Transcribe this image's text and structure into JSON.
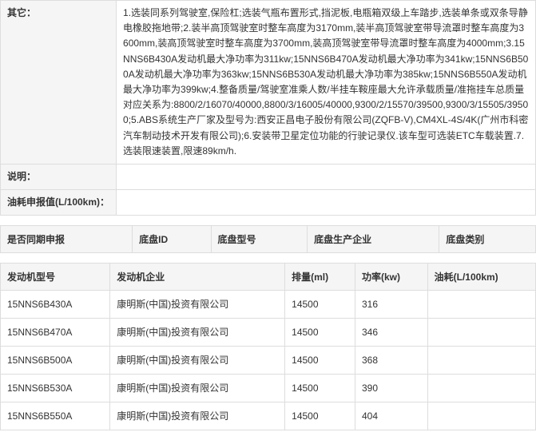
{
  "spec": {
    "other_label": "其它：",
    "other_value": "1.选装同系列驾驶室,保险杠;选装气瓶布置形式,挡泥板,电瓶箱双级上车踏步,选装单条或双条导静电橡胶拖地带;2.装半高顶驾驶室时整车高度为3170mm,装半高顶驾驶室带导流罩时整车高度为3600mm,装高顶驾驶室时整车高度为3700mm,装高顶驾驶室带导流罩时整车高度为4000mm;3.15NNS6B430A发动机最大净功率为311kw;15NNS6B470A发动机最大净功率为341kw;15NNS6B500A发动机最大净功率为363kw;15NNS6B530A发动机最大净功率为385kw;15NNS6B550A发动机最大净功率为399kw;4.整备质量/驾驶室准乘人数/半挂车鞍座最大允许承载质量/准拖挂车总质量对应关系为:8800/2/16070/40000,8800/3/16005/40000,9300/2/15570/39500,9300/3/15505/39500;5.ABS系统生产厂家及型号为:西安正昌电子股份有限公司(ZQFB-V),CM4XL-4S/4K(广州市科密汽车制动技术开发有限公司);6.安装带卫星定位功能的行驶记录仪.该车型可选装ETC车载装置.7.选装限速装置,限速89km/h.",
    "desc_label": "说明：",
    "desc_value": "",
    "fuel_label": "油耗申报值(L/100km)：",
    "fuel_value": ""
  },
  "chassis": {
    "columns": [
      "是否同期申报",
      "底盘ID",
      "底盘型号",
      "底盘生产企业",
      "底盘类别"
    ]
  },
  "engine": {
    "columns": [
      "发动机型号",
      "发动机企业",
      "排量(ml)",
      "功率(kw)",
      "油耗(L/100km)"
    ],
    "rows": [
      [
        "15NNS6B430A",
        "康明斯(中国)投资有限公司",
        "14500",
        "316",
        ""
      ],
      [
        "15NNS6B470A",
        "康明斯(中国)投资有限公司",
        "14500",
        "346",
        ""
      ],
      [
        "15NNS6B500A",
        "康明斯(中国)投资有限公司",
        "14500",
        "368",
        ""
      ],
      [
        "15NNS6B530A",
        "康明斯(中国)投资有限公司",
        "14500",
        "390",
        ""
      ],
      [
        "15NNS6B550A",
        "康明斯(中国)投资有限公司",
        "14500",
        "404",
        ""
      ]
    ]
  }
}
